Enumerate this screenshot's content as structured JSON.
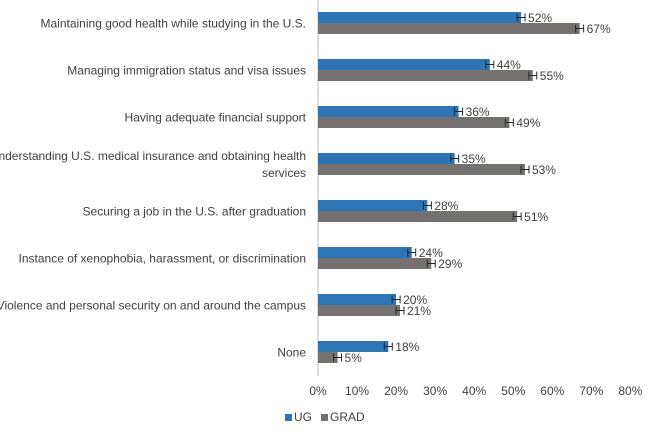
{
  "chart_data": {
    "type": "bar",
    "orientation": "horizontal",
    "categories": [
      [
        "Maintaining good health while studying in the U.S."
      ],
      [
        "Managing immigration status and visa issues"
      ],
      [
        "Having adequate financial support"
      ],
      [
        "Understanding U.S. medical insurance and obtaining health",
        "services"
      ],
      [
        "Securing a job in the U.S. after graduation"
      ],
      [
        "Instance of xenophobia, harassment, or discrimination"
      ],
      [
        "Violence and personal security on and around the campus"
      ],
      [
        "None"
      ]
    ],
    "series": [
      {
        "name": "UG",
        "color": "#2e75b6",
        "values": [
          52,
          44,
          36,
          35,
          28,
          24,
          20,
          18
        ],
        "labels": [
          "52%",
          "44%",
          "36%",
          "35%",
          "28%",
          "24%",
          "20%",
          "18%"
        ]
      },
      {
        "name": "GRAD",
        "color": "#767171",
        "values": [
          67,
          55,
          49,
          53,
          51,
          29,
          21,
          5
        ],
        "labels": [
          "67%",
          "55%",
          "49%",
          "53%",
          "51%",
          "29%",
          "21%",
          "5%"
        ]
      }
    ],
    "xlim": [
      0,
      80
    ],
    "ticks": [
      0,
      10,
      20,
      30,
      40,
      50,
      60,
      70,
      80
    ],
    "tick_labels": [
      "0%",
      "10%",
      "20%",
      "30%",
      "40%",
      "50%",
      "60%",
      "70%",
      "80%"
    ],
    "error_bars": true,
    "legend_position": "bottom-left",
    "grid": false
  }
}
